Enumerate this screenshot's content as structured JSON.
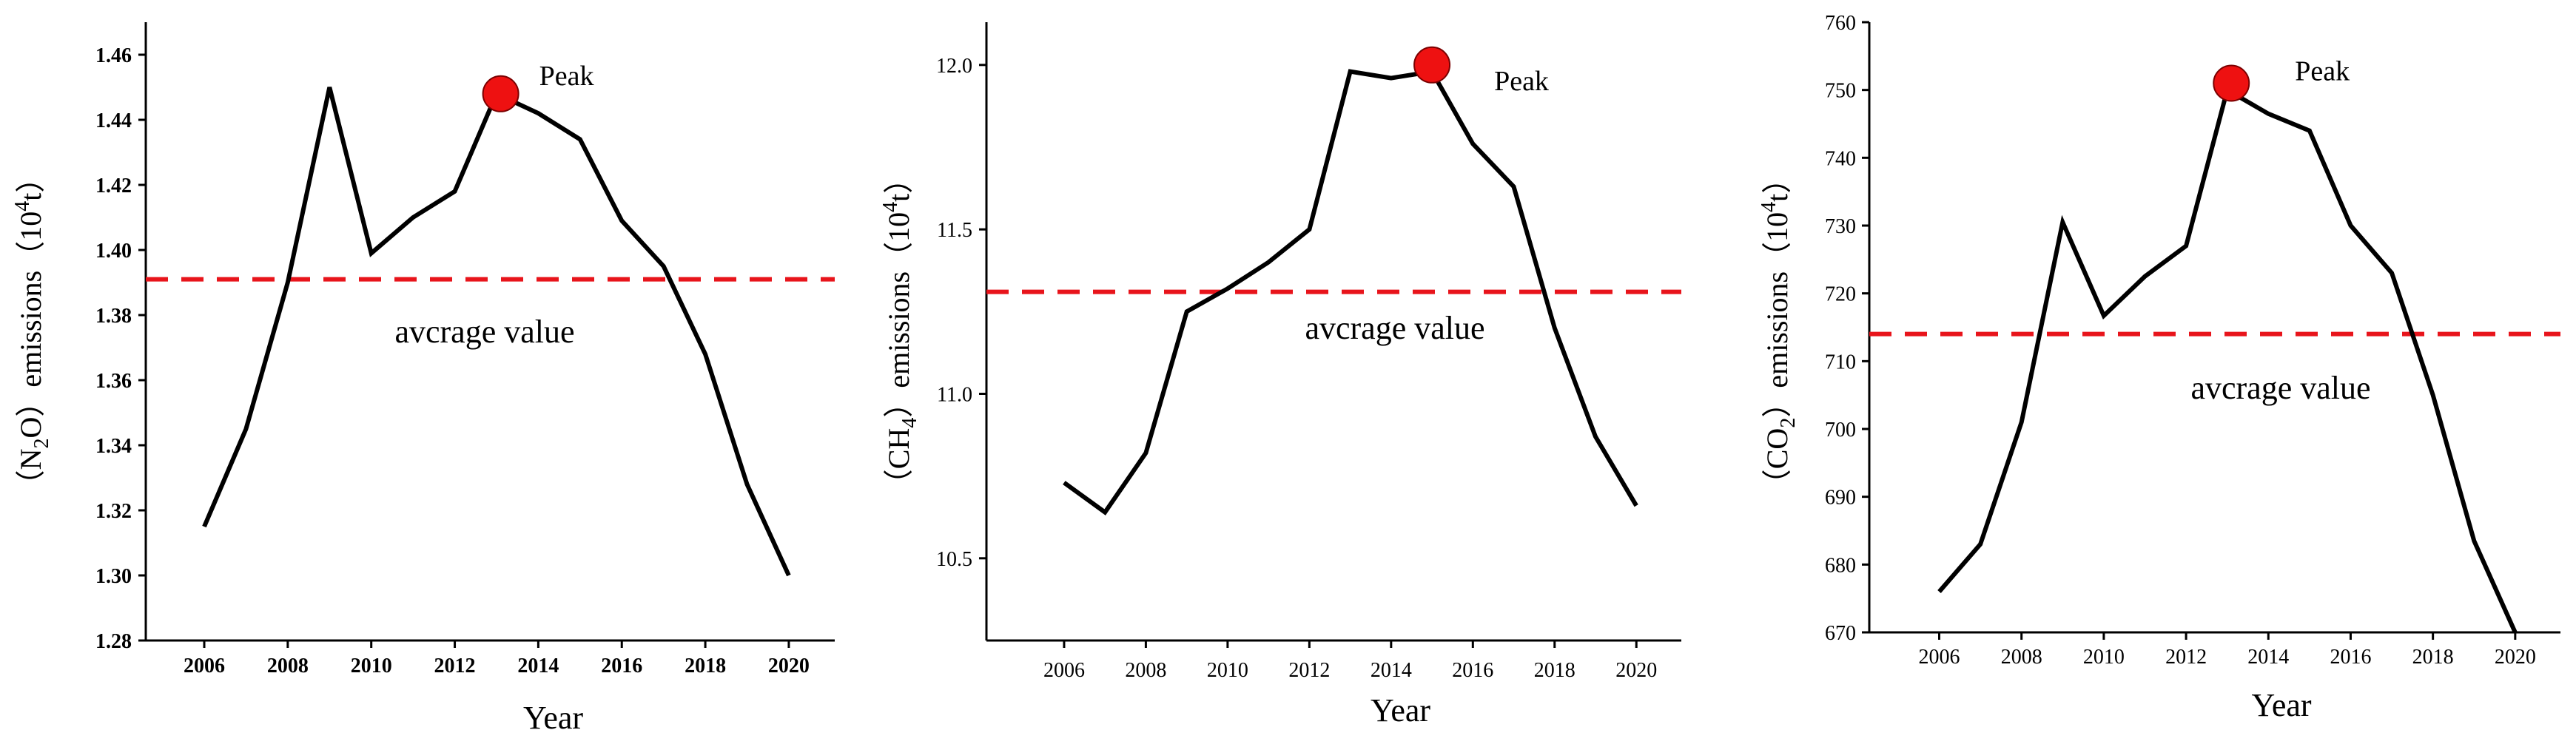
{
  "colors": {
    "line": "#000000",
    "average": "#e8141b",
    "peak": "#ee1111"
  },
  "chart_data": [
    {
      "type": "line",
      "name": "n2o",
      "x": [
        2006,
        2007,
        2008,
        2009,
        2010,
        2011,
        2012,
        2013,
        2014,
        2015,
        2016,
        2017,
        2018,
        2019,
        2020
      ],
      "values": [
        1.315,
        1.345,
        1.39,
        1.45,
        1.399,
        1.41,
        1.418,
        1.448,
        1.442,
        1.434,
        1.409,
        1.395,
        1.368,
        1.328,
        1.3
      ],
      "xlim": [
        2004.6,
        2021.1
      ],
      "ylim": [
        1.28,
        1.47
      ],
      "xticks": [
        2006,
        2008,
        2010,
        2012,
        2014,
        2016,
        2018,
        2020
      ],
      "xtick_labels": [
        "2006",
        "2008",
        "2010",
        "2012",
        "2014",
        "2016",
        "2018",
        "2020"
      ],
      "yticks": [
        1.28,
        1.3,
        1.32,
        1.34,
        1.36,
        1.38,
        1.4,
        1.42,
        1.44,
        1.46
      ],
      "ytick_labels": [
        "1.28",
        "1.30",
        "1.32",
        "1.34",
        "1.36",
        "1.38",
        "1.40",
        "1.42",
        "1.44",
        "1.46"
      ],
      "average": 1.391,
      "peak": {
        "x": 2013.1,
        "y": 1.448
      },
      "title": "",
      "xlabel": "Year",
      "ylabel": {
        "open": "（N",
        "sub1": "2",
        "mid": "O）emissions（10",
        "sup": "4",
        "close": "t）"
      },
      "annotations": {
        "average": "avcrage value",
        "peak": "Peak"
      }
    },
    {
      "type": "line",
      "name": "ch4",
      "x": [
        2006,
        2007,
        2008,
        2009,
        2010,
        2011,
        2012,
        2013,
        2014,
        2015,
        2016,
        2017,
        2018,
        2019,
        2020
      ],
      "values": [
        10.73,
        10.64,
        10.82,
        11.25,
        11.32,
        11.4,
        11.5,
        11.98,
        11.96,
        11.98,
        11.76,
        11.63,
        11.2,
        10.87,
        10.66
      ],
      "xlim": [
        2004.1,
        2021.1
      ],
      "ylim": [
        10.25,
        12.13
      ],
      "xticks": [
        2006,
        2008,
        2010,
        2012,
        2014,
        2016,
        2018,
        2020
      ],
      "xtick_labels": [
        "2006",
        "2008",
        "2010",
        "2012",
        "2014",
        "2016",
        "2018",
        "2020"
      ],
      "yticks": [
        10.5,
        11.0,
        11.5,
        12.0
      ],
      "ytick_labels": [
        "10.5",
        "11.0",
        "11.5",
        "12.0"
      ],
      "average": 11.31,
      "peak": {
        "x": 2015.0,
        "y": 12.0
      },
      "title": "",
      "xlabel": "Year",
      "ylabel": {
        "open": "（CH",
        "sub1": "4",
        "mid": "）emissions（10",
        "sup": "4",
        "close": "t）"
      },
      "annotations": {
        "average": "avcrage value",
        "peak": "Peak"
      }
    },
    {
      "type": "line",
      "name": "co2",
      "x": [
        2006,
        2007,
        2008,
        2009,
        2010,
        2011,
        2012,
        2013,
        2014,
        2015,
        2016,
        2017,
        2018,
        2019,
        2020
      ],
      "values": [
        676,
        683,
        701,
        730.5,
        716.7,
        722.5,
        727,
        750,
        746.5,
        744,
        730,
        723,
        705,
        683.5,
        670
      ],
      "xlim": [
        2004.3,
        2021.1
      ],
      "ylim": [
        670,
        760
      ],
      "xticks": [
        2006,
        2008,
        2010,
        2012,
        2014,
        2016,
        2018,
        2020
      ],
      "xtick_labels": [
        "2006",
        "2008",
        "2010",
        "2012",
        "2014",
        "2016",
        "2018",
        "2020"
      ],
      "yticks": [
        670,
        680,
        690,
        700,
        710,
        720,
        730,
        740,
        750,
        760
      ],
      "ytick_labels": [
        "670",
        "680",
        "690",
        "700",
        "710",
        "720",
        "730",
        "740",
        "750",
        "760"
      ],
      "average": 714,
      "peak": {
        "x": 2013.1,
        "y": 751
      },
      "title": "",
      "xlabel": "Year",
      "ylabel": {
        "open": "（CO",
        "sub1": "2",
        "mid": "）emissions（10",
        "sup": "4",
        "close": "t）"
      },
      "annotations": {
        "average": "avcrage value",
        "peak": "Peak"
      }
    }
  ]
}
